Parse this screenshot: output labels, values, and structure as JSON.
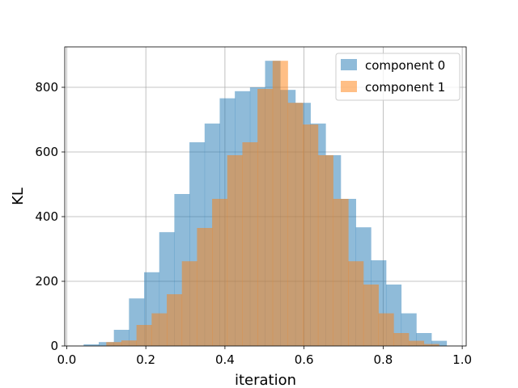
{
  "chart_data": {
    "type": "histogram",
    "xlabel": "iteration",
    "ylabel": "KL",
    "xlim": [
      -0.005,
      1.01
    ],
    "ylim": [
      0,
      925
    ],
    "xticks": [
      0.0,
      0.2,
      0.4,
      0.6,
      0.8,
      1.0
    ],
    "xtick_labels": [
      "0.0",
      "0.2",
      "0.4",
      "0.6",
      "0.8",
      "1.0"
    ],
    "yticks": [
      0,
      200,
      400,
      600,
      800
    ],
    "ytick_labels": [
      "0",
      "200",
      "400",
      "600",
      "800"
    ],
    "grid": true,
    "legend_position": "top-right",
    "series": [
      {
        "name": "component 0",
        "color": "#1f77b4",
        "alpha": 0.5,
        "bin_edges": [
          0.0427,
          0.0809,
          0.1192,
          0.1574,
          0.1956,
          0.2339,
          0.2721,
          0.3103,
          0.3486,
          0.3868,
          0.425,
          0.4633,
          0.5015,
          0.5397,
          0.578,
          0.6162,
          0.6544,
          0.6927,
          0.7309,
          0.7691,
          0.8074,
          0.8456,
          0.8838,
          0.9221
        ],
        "values": [
          5,
          12,
          50,
          147,
          228,
          352,
          470,
          630,
          688,
          766,
          788,
          800,
          882,
          792,
          752,
          688,
          590,
          455,
          367,
          265,
          190,
          101,
          40,
          16
        ],
        "bin_width": 0.0382
      },
      {
        "name": "component 1",
        "color": "#ff7f0e",
        "alpha": 0.5,
        "bin_edges": [
          0.1,
          0.1382,
          0.1764,
          0.2147,
          0.2529,
          0.2911,
          0.3294,
          0.3676,
          0.4058,
          0.4441,
          0.4823,
          0.5205,
          0.5588,
          0.597,
          0.6352,
          0.6735,
          0.7117,
          0.7499,
          0.7882,
          0.8264,
          0.8646,
          0.9029
        ],
        "values": [
          12,
          17,
          65,
          101,
          160,
          262,
          365,
          455,
          590,
          630,
          795,
          882,
          752,
          685,
          590,
          455,
          262,
          190,
          101,
          40,
          16,
          6
        ],
        "bin_width": 0.0382
      }
    ]
  }
}
